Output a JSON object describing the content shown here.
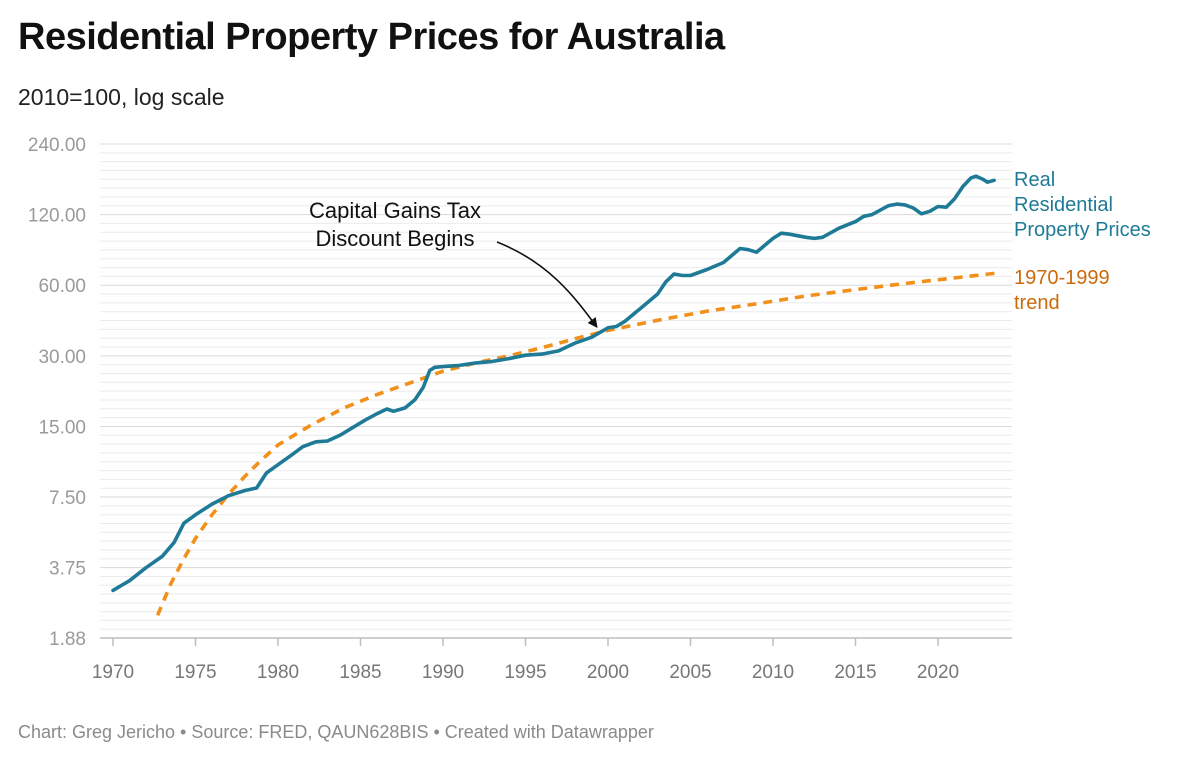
{
  "title": "Residential Property Prices for Australia",
  "subtitle": "2010=100, log scale",
  "footer": "Chart: Greg Jericho • Source: FRED, QAUN628BIS • Created with Datawrapper",
  "colors": {
    "real": "#1e7a96",
    "trend": "#f1901b",
    "trend_label": "#cc6a0a"
  },
  "chart_data": {
    "type": "line",
    "scale": "log",
    "ylim": [
      1.88,
      240
    ],
    "xlim": [
      1970,
      2023.5
    ],
    "y_ticks": [
      {
        "value": 1.88,
        "label": "1.88"
      },
      {
        "value": 3.75,
        "label": "3.75"
      },
      {
        "value": 7.5,
        "label": "7.50"
      },
      {
        "value": 15,
        "label": "15.00"
      },
      {
        "value": 30,
        "label": "30.00"
      },
      {
        "value": 60,
        "label": "60.00"
      },
      {
        "value": 120,
        "label": "120.00"
      },
      {
        "value": 240,
        "label": "240.00"
      }
    ],
    "x_ticks": [
      1970,
      1975,
      1980,
      1985,
      1990,
      1995,
      2000,
      2005,
      2010,
      2015,
      2020
    ],
    "series": [
      {
        "name": "Real Residential Property Prices",
        "label_lines": [
          "Real",
          "Residential",
          "Property Prices"
        ],
        "points": [
          [
            1970.0,
            3.0
          ],
          [
            1971.0,
            3.3
          ],
          [
            1972.0,
            3.75
          ],
          [
            1973.0,
            4.2
          ],
          [
            1973.7,
            4.8
          ],
          [
            1974.3,
            5.8
          ],
          [
            1975.0,
            6.3
          ],
          [
            1976.0,
            7.0
          ],
          [
            1977.0,
            7.6
          ],
          [
            1978.0,
            8.0
          ],
          [
            1978.7,
            8.2
          ],
          [
            1979.3,
            9.5
          ],
          [
            1980.0,
            10.3
          ],
          [
            1980.8,
            11.3
          ],
          [
            1981.5,
            12.3
          ],
          [
            1982.3,
            12.9
          ],
          [
            1983.0,
            13.0
          ],
          [
            1983.8,
            13.8
          ],
          [
            1984.5,
            14.8
          ],
          [
            1985.3,
            16.0
          ],
          [
            1986.0,
            17.0
          ],
          [
            1986.6,
            17.8
          ],
          [
            1987.0,
            17.4
          ],
          [
            1987.7,
            18.0
          ],
          [
            1988.3,
            19.5
          ],
          [
            1988.8,
            22.0
          ],
          [
            1989.2,
            26.0
          ],
          [
            1989.5,
            26.8
          ],
          [
            1990.0,
            27.0
          ],
          [
            1991.0,
            27.3
          ],
          [
            1992.0,
            28.0
          ],
          [
            1993.0,
            28.4
          ],
          [
            1994.0,
            29.2
          ],
          [
            1995.0,
            30.2
          ],
          [
            1996.0,
            30.5
          ],
          [
            1997.0,
            31.5
          ],
          [
            1998.0,
            34.0
          ],
          [
            1999.0,
            36.0
          ],
          [
            2000.0,
            39.5
          ],
          [
            2000.5,
            40.0
          ],
          [
            2001.0,
            42.0
          ],
          [
            2002.0,
            48.0
          ],
          [
            2003.0,
            55.0
          ],
          [
            2003.5,
            62.0
          ],
          [
            2004.0,
            67.0
          ],
          [
            2004.5,
            66.0
          ],
          [
            2005.0,
            66.0
          ],
          [
            2006.0,
            70.0
          ],
          [
            2007.0,
            75.0
          ],
          [
            2008.0,
            86.0
          ],
          [
            2008.5,
            85.0
          ],
          [
            2009.0,
            83.0
          ],
          [
            2010.0,
            95.0
          ],
          [
            2010.5,
            100.0
          ],
          [
            2011.0,
            99.0
          ],
          [
            2012.0,
            96.0
          ],
          [
            2012.5,
            95.0
          ],
          [
            2013.0,
            96.0
          ],
          [
            2014.0,
            105.0
          ],
          [
            2015.0,
            112.0
          ],
          [
            2015.5,
            118.0
          ],
          [
            2016.0,
            120.0
          ],
          [
            2017.0,
            131.0
          ],
          [
            2017.5,
            133.0
          ],
          [
            2018.0,
            132.0
          ],
          [
            2018.5,
            128.0
          ],
          [
            2019.0,
            121.0
          ],
          [
            2019.5,
            124.0
          ],
          [
            2020.0,
            130.0
          ],
          [
            2020.5,
            129.0
          ],
          [
            2021.0,
            140.0
          ],
          [
            2021.5,
            158.0
          ],
          [
            2022.0,
            172.0
          ],
          [
            2022.3,
            175.0
          ],
          [
            2022.7,
            170.0
          ],
          [
            2023.0,
            165.0
          ],
          [
            2023.4,
            168.0
          ]
        ]
      },
      {
        "name": "1970-1999 trend",
        "label_lines": [
          "1970-1999",
          "trend"
        ],
        "style": "dashed",
        "points": [
          [
            1972.7,
            2.35
          ],
          [
            1973.5,
            3.2
          ],
          [
            1974.3,
            4.1
          ],
          [
            1975.0,
            5.0
          ],
          [
            1976.0,
            6.3
          ],
          [
            1977.0,
            7.7
          ],
          [
            1978.0,
            9.2
          ],
          [
            1979.0,
            10.8
          ],
          [
            1980.0,
            12.5
          ],
          [
            1982.0,
            15.2
          ],
          [
            1984.0,
            18.0
          ],
          [
            1986.0,
            20.5
          ],
          [
            1988.0,
            23.0
          ],
          [
            1990.0,
            25.8
          ],
          [
            1992.0,
            28.0
          ],
          [
            1994.0,
            30.0
          ],
          [
            1996.0,
            32.5
          ],
          [
            1998.0,
            35.5
          ],
          [
            2000.0,
            38.5
          ],
          [
            2003.0,
            42.5
          ],
          [
            2006.0,
            46.5
          ],
          [
            2009.0,
            50.0
          ],
          [
            2012.0,
            54.0
          ],
          [
            2015.0,
            57.5
          ],
          [
            2018.0,
            61.0
          ],
          [
            2021.0,
            64.5
          ],
          [
            2023.5,
            67.5
          ]
        ]
      }
    ],
    "annotations": [
      {
        "text_lines": [
          "Capital Gains Tax",
          "Discount Begins"
        ],
        "x": 1999.3,
        "y": 38.5
      }
    ]
  }
}
